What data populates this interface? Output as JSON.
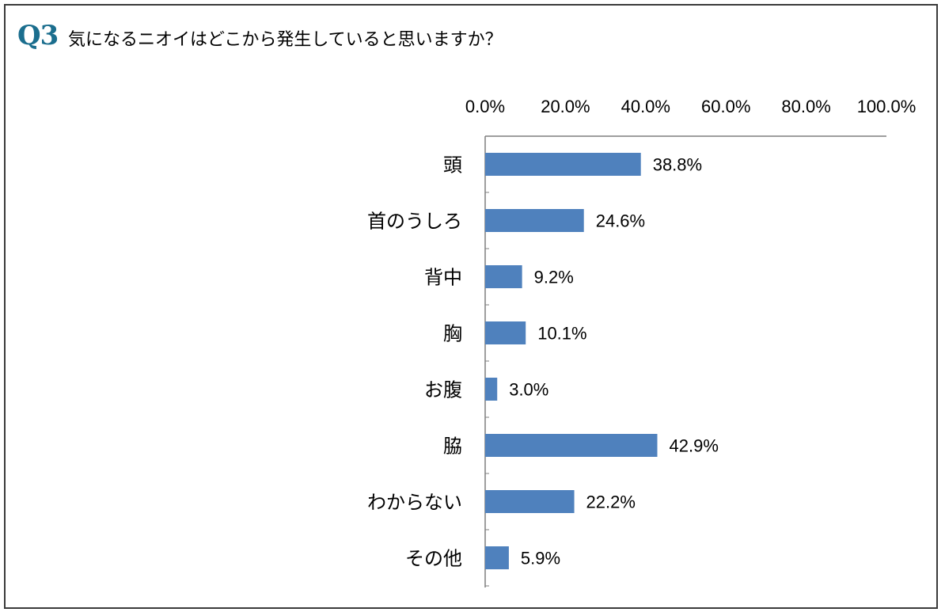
{
  "question": {
    "number": "Q3",
    "text": "気になるニオイはどこから発生していると思いますか？"
  },
  "colors": {
    "bar": "#4f81bd",
    "question_number": "#1b6e8e",
    "axis": "#7f7f7f",
    "frame": "#3a3a3a"
  },
  "chart_data": {
    "type": "bar",
    "orientation": "horizontal",
    "categories": [
      "頭",
      "首のうしろ",
      "背中",
      "胸",
      "お腹",
      "脇",
      "わからない",
      "その他"
    ],
    "values": [
      38.8,
      24.6,
      9.2,
      10.1,
      3.0,
      42.9,
      22.2,
      5.9
    ],
    "value_labels": [
      "38.8%",
      "24.6%",
      "9.2%",
      "10.1%",
      "3.0%",
      "42.9%",
      "22.2%",
      "5.9%"
    ],
    "xlim": [
      0,
      100
    ],
    "ticks": [
      0,
      20,
      40,
      60,
      80,
      100
    ],
    "tick_labels": [
      "0.0%",
      "20.0%",
      "40.0%",
      "60.0%",
      "80.0%",
      "100.0%"
    ],
    "axis_position": "top",
    "grid": false,
    "legend": false
  }
}
